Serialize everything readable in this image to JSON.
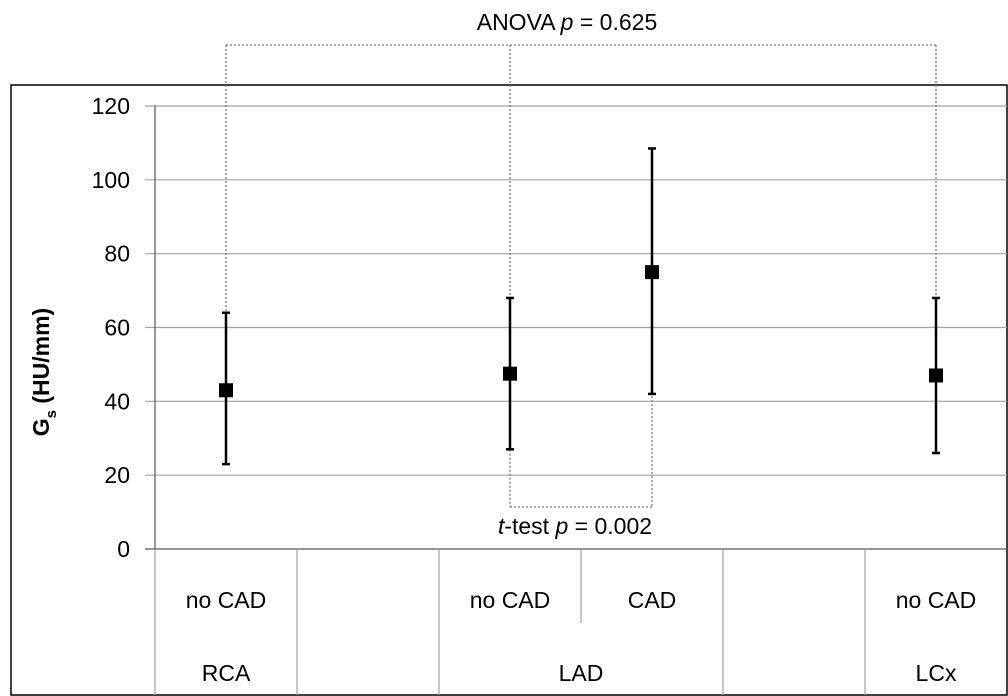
{
  "chart_data": {
    "type": "scatter",
    "ylabel_main": "G",
    "ylabel_sub": "s",
    "ylabel_unit": " (HU/mm)",
    "ylim": [
      0,
      120
    ],
    "yticks": [
      0,
      20,
      40,
      60,
      80,
      100,
      120
    ],
    "grid": true,
    "points": [
      {
        "slot": 0,
        "label": "no CAD",
        "mean": 43,
        "lower": 23,
        "upper": 64
      },
      {
        "slot": 2,
        "label": "no CAD",
        "mean": 47.5,
        "lower": 27,
        "upper": 68
      },
      {
        "slot": 3,
        "label": "CAD",
        "mean": 75,
        "lower": 42,
        "upper": 108.5
      },
      {
        "slot": 5,
        "label": "no CAD",
        "mean": 47,
        "lower": 26,
        "upper": 68
      }
    ],
    "groups": [
      {
        "label": "RCA",
        "slots": [
          0,
          0
        ]
      },
      {
        "label": "LAD",
        "slots": [
          1,
          4
        ]
      },
      {
        "label": "LCx",
        "slots": [
          5,
          5
        ]
      }
    ],
    "annotations": {
      "anova_prefix": "ANOVA ",
      "anova_p": "p",
      "anova_value": " = 0.625",
      "ttest_t": "t",
      "ttest_mid": "-test ",
      "ttest_p": "p",
      "ttest_value": " = 0.002"
    }
  }
}
